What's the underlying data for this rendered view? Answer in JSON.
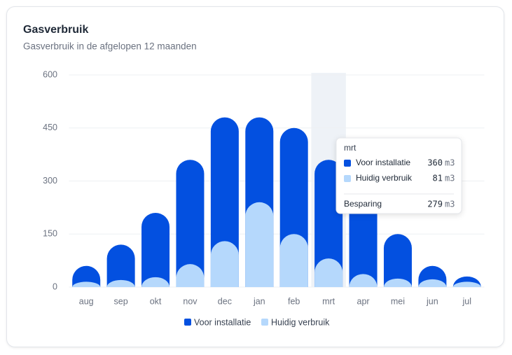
{
  "chart_data": {
    "type": "bar",
    "title": "Gasverbruik",
    "subtitle": "Gasverbruik in de afgelopen 12 maanden",
    "categories": [
      "aug",
      "sep",
      "okt",
      "nov",
      "dec",
      "jan",
      "feb",
      "mrt",
      "apr",
      "mei",
      "jun",
      "jul"
    ],
    "series": [
      {
        "name": "Voor installatie",
        "color": "#0350e0",
        "values": [
          60,
          120,
          210,
          360,
          480,
          480,
          450,
          360,
          300,
          150,
          60,
          30
        ]
      },
      {
        "name": "Huidig verbruik",
        "color": "#b5d8fc",
        "values": [
          15,
          20,
          28,
          65,
          130,
          240,
          150,
          81,
          37,
          24,
          22,
          15
        ]
      }
    ],
    "ylim": [
      0,
      600
    ],
    "yticks": [
      0,
      150,
      300,
      450,
      600
    ],
    "grid": true,
    "tooltip": {
      "total_label": "Besparing",
      "total": 279,
      "unit": "m3"
    }
  }
}
